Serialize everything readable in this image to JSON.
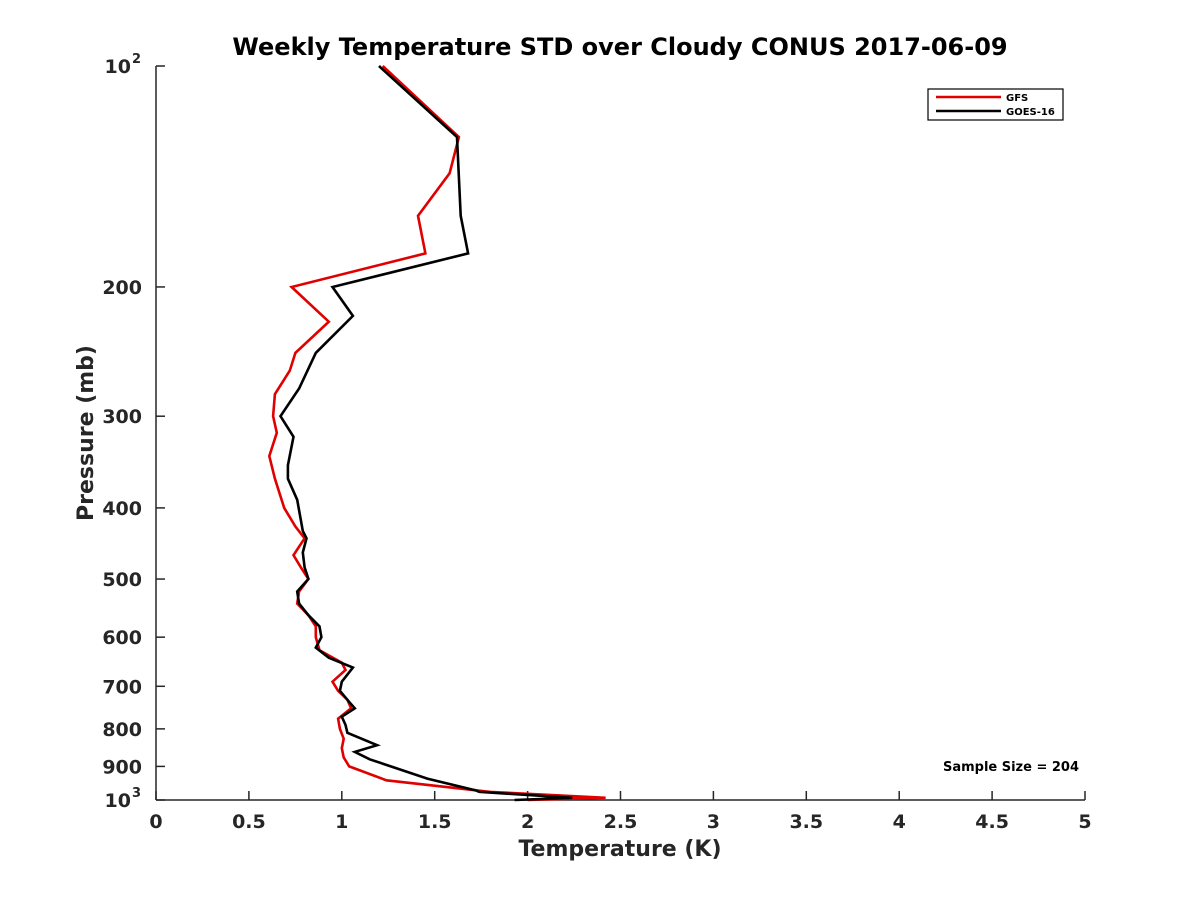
{
  "chart_data": {
    "type": "line",
    "title": "Weekly Temperature STD over Cloudy CONUS 2017-06-09",
    "xlabel": "Temperature (K)",
    "ylabel": "Pressure (mb)",
    "xlim": [
      0,
      5
    ],
    "ylim": [
      100,
      1000
    ],
    "y_scale": "log",
    "y_reversed": true,
    "x_ticks": [
      "0",
      "0.5",
      "1",
      "1.5",
      "2",
      "2.5",
      "3",
      "3.5",
      "4",
      "4.5",
      "5"
    ],
    "y_ticks": [
      {
        "value": 100,
        "base": "10",
        "exp": "2"
      },
      {
        "value": 200,
        "label": "200"
      },
      {
        "value": 300,
        "label": "300"
      },
      {
        "value": 400,
        "label": "400"
      },
      {
        "value": 500,
        "label": "500"
      },
      {
        "value": 600,
        "label": "600"
      },
      {
        "value": 700,
        "label": "700"
      },
      {
        "value": 800,
        "label": "800"
      },
      {
        "value": 900,
        "label": "900"
      },
      {
        "value": 1000,
        "base": "10",
        "exp": "3"
      }
    ],
    "grid": false,
    "legend_position": "top-right",
    "annotation": "Sample Size = 204",
    "series": [
      {
        "name": "GFS",
        "color": "#e00000",
        "points": [
          [
            1.22,
            100
          ],
          [
            1.63,
            125
          ],
          [
            1.58,
            140
          ],
          [
            1.41,
            160
          ],
          [
            1.45,
            180
          ],
          [
            0.73,
            200
          ],
          [
            0.93,
            223
          ],
          [
            0.75,
            246
          ],
          [
            0.72,
            260
          ],
          [
            0.64,
            280
          ],
          [
            0.63,
            300
          ],
          [
            0.65,
            316
          ],
          [
            0.61,
            340
          ],
          [
            0.64,
            365
          ],
          [
            0.69,
            400
          ],
          [
            0.75,
            424
          ],
          [
            0.8,
            440
          ],
          [
            0.74,
            464
          ],
          [
            0.78,
            482
          ],
          [
            0.82,
            500
          ],
          [
            0.77,
            520
          ],
          [
            0.76,
            540
          ],
          [
            0.82,
            560
          ],
          [
            0.86,
            580
          ],
          [
            0.86,
            600
          ],
          [
            0.88,
            625
          ],
          [
            1.0,
            650
          ],
          [
            1.02,
            665
          ],
          [
            0.95,
            690
          ],
          [
            0.98,
            710
          ],
          [
            1.03,
            730
          ],
          [
            1.05,
            750
          ],
          [
            0.98,
            775
          ],
          [
            0.99,
            800
          ],
          [
            1.01,
            825
          ],
          [
            1.0,
            850
          ],
          [
            1.01,
            875
          ],
          [
            1.04,
            900
          ],
          [
            1.24,
            940
          ],
          [
            1.8,
            975
          ],
          [
            2.42,
            993
          ],
          [
            2.0,
            1000
          ]
        ]
      },
      {
        "name": "GOES-16",
        "color": "#000000",
        "points": [
          [
            1.2,
            100
          ],
          [
            1.62,
            125
          ],
          [
            1.64,
            160
          ],
          [
            1.68,
            180
          ],
          [
            0.95,
            200
          ],
          [
            1.06,
            219
          ],
          [
            0.86,
            246
          ],
          [
            0.77,
            275
          ],
          [
            0.67,
            300
          ],
          [
            0.74,
            320
          ],
          [
            0.71,
            350
          ],
          [
            0.71,
            365
          ],
          [
            0.76,
            390
          ],
          [
            0.79,
            430
          ],
          [
            0.81,
            440
          ],
          [
            0.79,
            460
          ],
          [
            0.8,
            482
          ],
          [
            0.82,
            500
          ],
          [
            0.76,
            520
          ],
          [
            0.77,
            540
          ],
          [
            0.82,
            560
          ],
          [
            0.88,
            580
          ],
          [
            0.89,
            600
          ],
          [
            0.86,
            620
          ],
          [
            0.93,
            640
          ],
          [
            1.06,
            660
          ],
          [
            1.0,
            690
          ],
          [
            0.99,
            710
          ],
          [
            1.04,
            735
          ],
          [
            1.07,
            750
          ],
          [
            1.0,
            770
          ],
          [
            1.02,
            790
          ],
          [
            1.03,
            810
          ],
          [
            1.19,
            842
          ],
          [
            1.07,
            860
          ],
          [
            1.15,
            880
          ],
          [
            1.46,
            935
          ],
          [
            1.72,
            970
          ],
          [
            1.74,
            975
          ],
          [
            2.24,
            993
          ],
          [
            1.93,
            1000
          ]
        ]
      }
    ]
  }
}
